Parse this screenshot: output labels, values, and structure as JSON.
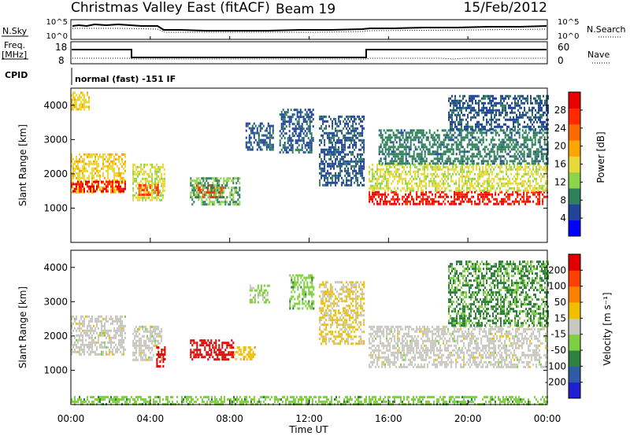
{
  "header": {
    "station": "Christmas Valley East (fitACF)",
    "beam": "Beam 19",
    "date": "15/Feb/2012"
  },
  "params_panel": {
    "nsky_label": "N.Sky",
    "nsky_ticks": [
      "10^5",
      "10^0"
    ],
    "nsearch_label": "N.Search",
    "nsearch_ticks": [
      "10^5",
      "10^0"
    ],
    "freq_label_1": "Freq.",
    "freq_label_2": "[MHz]",
    "freq_ticks": [
      "18",
      "8"
    ],
    "nave_label": "Nave",
    "nave_ticks": [
      "60",
      "0"
    ],
    "cpid_label": "CPID",
    "cpid_value": "normal (fast) -151 IF"
  },
  "colors": {
    "power_scale": [
      "#0000ff",
      "#20449a",
      "#2e7f5a",
      "#8cd44a",
      "#e8d838",
      "#ffa400",
      "#ff6a00",
      "#ff2a00",
      "#e80000"
    ],
    "velocity_scale": [
      "#1f1fcf",
      "#2e5aa8",
      "#2e8040",
      "#7fd040",
      "#c8c8c0",
      "#f0c000",
      "#ff8000",
      "#ff4000",
      "#e00000"
    ]
  },
  "chart_data": [
    {
      "type": "heatmap",
      "quantity": "power",
      "ylabel": "Slant Range [km]",
      "yticks": [
        "1000",
        "2000",
        "3000",
        "4000"
      ],
      "ylim": [
        0,
        4500
      ],
      "xlim": [
        "00:00",
        "24:00"
      ],
      "colorbar_label": "Power [dB]",
      "colorbar_ticks": [
        "28",
        "24",
        "20",
        "16",
        "12",
        "8",
        "4"
      ],
      "colorbar_range": [
        0,
        30
      ],
      "regions": [
        {
          "t0": 0.0,
          "t1": 2.7,
          "r0": 1450,
          "r1": 2600,
          "value": 16
        },
        {
          "t0": 0.0,
          "t1": 2.7,
          "r0": 1500,
          "r1": 1800,
          "value": 27
        },
        {
          "t0": 0.0,
          "t1": 0.9,
          "r0": 3900,
          "r1": 4400,
          "value": 16
        },
        {
          "t0": 3.1,
          "t1": 4.7,
          "r0": 1250,
          "r1": 2300,
          "value": 14
        },
        {
          "t0": 3.4,
          "t1": 4.5,
          "r0": 1400,
          "r1": 1700,
          "value": 24
        },
        {
          "t0": 6.3,
          "t1": 7.7,
          "r0": 1300,
          "r1": 1700,
          "value": 24
        },
        {
          "t0": 6.0,
          "t1": 8.5,
          "r0": 1100,
          "r1": 1900,
          "value": 10
        },
        {
          "t0": 8.8,
          "t1": 10.2,
          "r0": 2700,
          "r1": 3500,
          "value": 6
        },
        {
          "t0": 10.5,
          "t1": 12.2,
          "r0": 2600,
          "r1": 3900,
          "value": 6
        },
        {
          "t0": 12.5,
          "t1": 14.8,
          "r0": 1700,
          "r1": 3700,
          "value": 6
        },
        {
          "t0": 15.0,
          "t1": 24.0,
          "r0": 1150,
          "r1": 1500,
          "value": 27
        },
        {
          "t0": 15.0,
          "t1": 24.0,
          "r0": 1500,
          "r1": 2300,
          "value": 14
        },
        {
          "t0": 15.5,
          "t1": 24.0,
          "r0": 2300,
          "r1": 3300,
          "value": 8
        },
        {
          "t0": 19.0,
          "t1": 24.0,
          "r0": 3300,
          "r1": 4300,
          "value": 6
        }
      ]
    },
    {
      "type": "heatmap",
      "quantity": "velocity",
      "ylabel": "Slant Range [km]",
      "yticks": [
        "1000",
        "2000",
        "3000",
        "4000"
      ],
      "ylim": [
        0,
        4500
      ],
      "xlim": [
        "00:00",
        "24:00"
      ],
      "xticks": [
        "00:00",
        "04:00",
        "08:00",
        "12:00",
        "16:00",
        "20:00",
        "00:00"
      ],
      "xlabel": "Time UT",
      "colorbar_label": "Velocity [m s⁻¹]",
      "colorbar_ticks": [
        "200",
        "100",
        "50",
        "15",
        "-15",
        "-50",
        "-100",
        "-200"
      ],
      "colorbar_range": [
        -250,
        250
      ],
      "regions": [
        {
          "t0": 0.0,
          "t1": 2.7,
          "r0": 1450,
          "r1": 2600,
          "value": 0
        },
        {
          "t0": 3.1,
          "t1": 4.6,
          "r0": 1300,
          "r1": 2300,
          "value": 0
        },
        {
          "t0": 4.3,
          "t1": 4.7,
          "r0": 1100,
          "r1": 1700,
          "value": 220
        },
        {
          "t0": 6.0,
          "t1": 8.2,
          "r0": 1300,
          "r1": 1900,
          "value": 220
        },
        {
          "t0": 8.2,
          "t1": 9.3,
          "r0": 1300,
          "r1": 1700,
          "value": 60
        },
        {
          "t0": 9.0,
          "t1": 10.0,
          "r0": 3000,
          "r1": 3500,
          "value": -40
        },
        {
          "t0": 11.0,
          "t1": 12.2,
          "r0": 2800,
          "r1": 3800,
          "value": -60
        },
        {
          "t0": 12.5,
          "t1": 14.8,
          "r0": 1800,
          "r1": 3600,
          "value": 30
        },
        {
          "t0": 15.0,
          "t1": 24.0,
          "r0": 1100,
          "r1": 2300,
          "value": 0
        },
        {
          "t0": 19.0,
          "t1": 24.0,
          "r0": 2300,
          "r1": 4200,
          "value": -90
        },
        {
          "t0": 0.0,
          "t1": 24.0,
          "r0": 0,
          "r1": 250,
          "value": -60
        }
      ]
    }
  ]
}
